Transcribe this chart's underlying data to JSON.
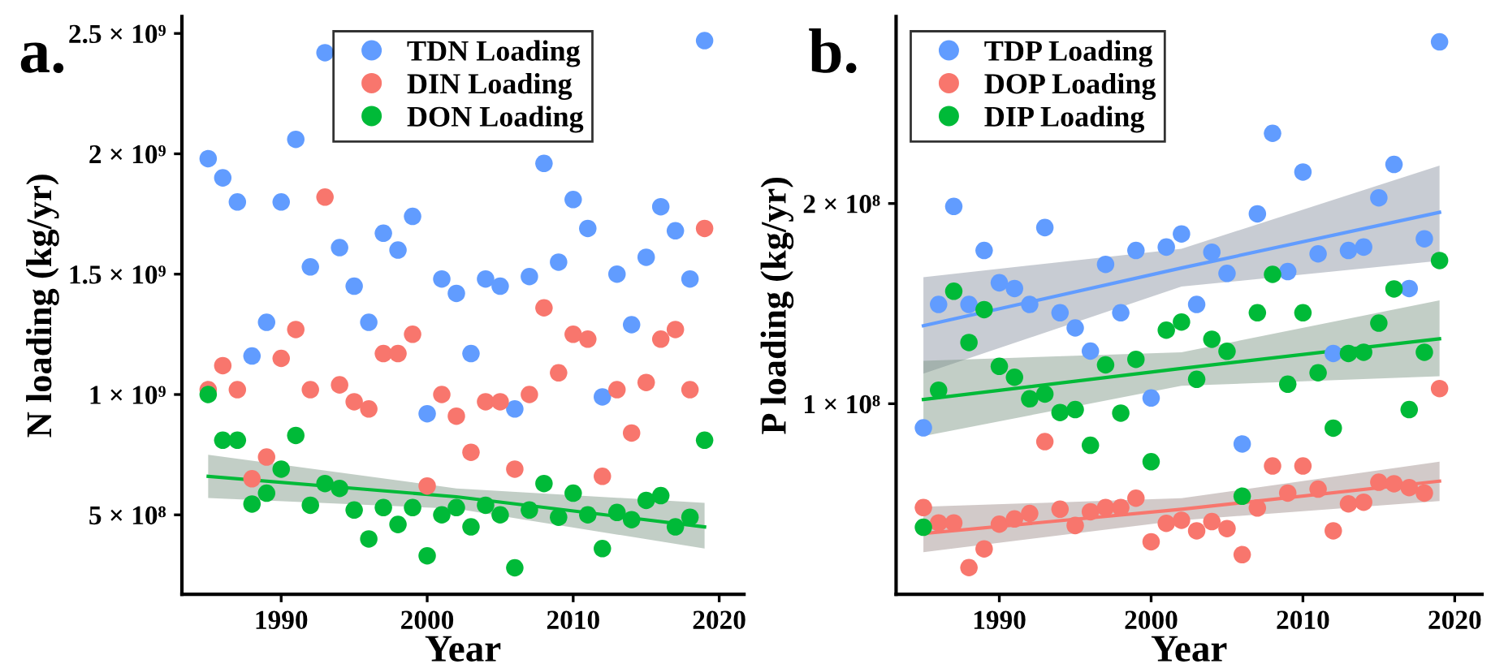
{
  "chart_data": [
    {
      "type": "scatter",
      "xlabel": "Year",
      "ylabel": "N loading (kg/yr)",
      "annotations": [
        "a."
      ],
      "legend": "top",
      "marker": "circle",
      "grid": false,
      "x": [
        1985,
        1986,
        1987,
        1988,
        1989,
        1990,
        1991,
        1992,
        1993,
        1994,
        1995,
        1996,
        1997,
        1998,
        1999,
        2000,
        2001,
        2002,
        2003,
        2004,
        2005,
        2006,
        2007,
        2008,
        2009,
        2010,
        2011,
        2012,
        2013,
        2014,
        2015,
        2016,
        2017,
        2018,
        2019
      ],
      "xlim": [
        1983.2,
        2021.7
      ],
      "xticks": [
        1990,
        2000,
        2010,
        2020
      ],
      "ylim": [
        170000000,
        2570000000
      ],
      "yticks": [
        {
          "value": 500000000,
          "label": "5 × 10⁸"
        },
        {
          "value": 1000000000,
          "label": "1 × 10⁹"
        },
        {
          "value": 1500000000,
          "label": "1.5 × 10⁹"
        },
        {
          "value": 2000000000,
          "label": "2 × 10⁹"
        },
        {
          "value": 2500000000,
          "label": "2.5 × 10⁹"
        }
      ],
      "series": [
        {
          "name": "TDN Loading",
          "color": "#619cff",
          "values": [
            1980000000,
            1900000000,
            1800000000,
            1160000000,
            1300000000,
            1800000000,
            2060000000,
            1530000000,
            2420000000,
            1610000000,
            1450000000,
            1300000000,
            1670000000,
            1600000000,
            1740000000,
            920000000,
            1480000000,
            1420000000,
            1170000000,
            1480000000,
            1450000000,
            940000000,
            1490000000,
            1960000000,
            1550000000,
            1810000000,
            1690000000,
            990000000,
            1500000000,
            1290000000,
            1570000000,
            1780000000,
            1680000000,
            1480000000,
            2470000000
          ]
        },
        {
          "name": "DIN Loading",
          "color": "#f8766d",
          "values": [
            1020000000,
            1120000000,
            1020000000,
            650000000,
            740000000,
            1150000000,
            1270000000,
            1020000000,
            1820000000,
            1040000000,
            970000000,
            940000000,
            1170000000,
            1170000000,
            1250000000,
            620000000,
            1000000000,
            910000000,
            760000000,
            970000000,
            970000000,
            690000000,
            1000000000,
            1360000000,
            1090000000,
            1250000000,
            1230000000,
            660000000,
            1020000000,
            840000000,
            1050000000,
            1230000000,
            1270000000,
            1020000000,
            1690000000
          ]
        },
        {
          "name": "DON Loading",
          "color": "#00ba38",
          "values": [
            1000000000,
            810000000,
            810000000,
            545000000,
            590000000,
            690000000,
            830000000,
            540000000,
            630000000,
            610000000,
            520000000,
            400000000,
            530000000,
            460000000,
            530000000,
            330000000,
            500000000,
            530000000,
            450000000,
            540000000,
            500000000,
            280000000,
            520000000,
            630000000,
            490000000,
            590000000,
            500000000,
            360000000,
            510000000,
            480000000,
            560000000,
            580000000,
            450000000,
            490000000,
            810000000
          ]
        },
        {
          "type": "line",
          "marker": "none",
          "color": "#00ba38",
          "x": [
            1985,
            2002,
            2019
          ],
          "values": [
            660000000,
            575000000,
            450000000
          ],
          "lower": [
            570000000,
            525000000,
            360000000
          ],
          "upper": [
            750000000,
            610000000,
            550000000
          ]
        }
      ]
    },
    {
      "type": "scatter",
      "xlabel": "Year",
      "ylabel": "P loading (kg/yr)",
      "annotations": [
        "b."
      ],
      "legend": "top left",
      "marker": "circle",
      "grid": false,
      "log": "y",
      "x": [
        1985,
        1986,
        1987,
        1988,
        1989,
        1990,
        1991,
        1992,
        1993,
        1994,
        1995,
        1996,
        1997,
        1998,
        1999,
        2000,
        2001,
        2002,
        2003,
        2004,
        2005,
        2006,
        2007,
        2008,
        2009,
        2010,
        2011,
        2012,
        2013,
        2014,
        2015,
        2016,
        2017,
        2018,
        2019
      ],
      "xlim": [
        1983.2,
        2021.8
      ],
      "xticks": [
        1990,
        2000,
        2010,
        2020
      ],
      "ylim": [
        51700000,
        382000000
      ],
      "yticks": [
        {
          "value": 100000000,
          "label": "1 × 10⁸"
        },
        {
          "value": 200000000,
          "label": "2 × 10⁸"
        }
      ],
      "series": [
        {
          "name": "TDP Loading",
          "color": "#619cff",
          "values": [
            92000000,
            141000000,
            198000000,
            141000000,
            170000000,
            152000000,
            149000000,
            141000000,
            184000000,
            137000000,
            130000000,
            120000000,
            162000000,
            137000000,
            170000000,
            102000000,
            172000000,
            180000000,
            141000000,
            169000000,
            157000000,
            87000000,
            193000000,
            255000000,
            158000000,
            223000000,
            168000000,
            119000000,
            170000000,
            172000000,
            204000000,
            229000000,
            149000000,
            177000000,
            350000000
          ]
        },
        {
          "name": "DOP Loading",
          "color": "#f8766d",
          "values": [
            69800000,
            66200000,
            66200000,
            56700000,
            60500000,
            65900000,
            67100000,
            68400000,
            87700000,
            69400000,
            65600000,
            68800000,
            69800000,
            69800000,
            72100000,
            62000000,
            66100000,
            66800000,
            64400000,
            66500000,
            64900000,
            59300000,
            69700000,
            80600000,
            73400000,
            80600000,
            74400000,
            64400000,
            70700000,
            71100000,
            76200000,
            75800000,
            74800000,
            73400000,
            105400000
          ]
        },
        {
          "name": "DIP Loading",
          "color": "#00ba38",
          "values": [
            65200000,
            104800000,
            147600000,
            123600000,
            138500000,
            113800000,
            109600000,
            101700000,
            103400000,
            97000000,
            98000000,
            86600000,
            114400000,
            96800000,
            116600000,
            81800000,
            129000000,
            132700000,
            108800000,
            125000000,
            119900000,
            72600000,
            137000000,
            156500000,
            107000000,
            137000000,
            111300000,
            91900000,
            119000000,
            119500000,
            132200000,
            148800000,
            98000000,
            119500000,
            164200000
          ]
        },
        {
          "type": "line",
          "marker": "none",
          "color": "#619cff",
          "x": [
            1985,
            2002,
            2019
          ],
          "values": [
            131000000,
            160000000,
            194000000
          ],
          "lower": [
            111000000,
            150000000,
            164000000
          ],
          "upper": [
            155000000,
            171000000,
            228000000
          ]
        },
        {
          "type": "line",
          "marker": "none",
          "color": "#f8766d",
          "x": [
            1985,
            2002,
            2019
          ],
          "values": [
            63800000,
            69400000,
            76500000
          ],
          "lower": [
            59800000,
            66800000,
            71400000
          ],
          "upper": [
            70000000,
            72100000,
            81800000
          ]
        },
        {
          "type": "line",
          "marker": "none",
          "color": "#00ba38",
          "x": [
            1985,
            2002,
            2019
          ],
          "values": [
            101500000,
            113000000,
            125200000
          ],
          "lower": [
            89400000,
            106400000,
            110000000
          ],
          "upper": [
            116000000,
            119500000,
            143000000
          ]
        }
      ]
    }
  ]
}
